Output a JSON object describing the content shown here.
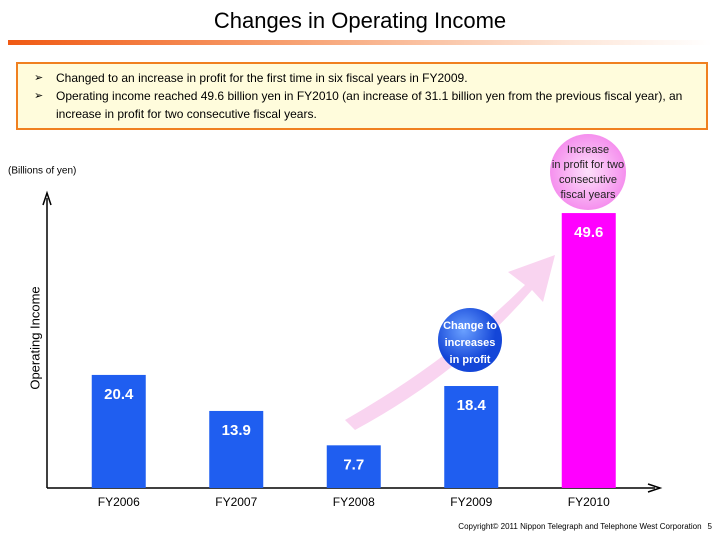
{
  "header": {
    "title": "Changes in Operating Income",
    "bullets": [
      "Changed to an increase in profit for the first time in six fiscal years in FY2009.",
      "Operating income reached 49.6 billion yen in FY2010 (an increase of 31.1 billion yen from the previous fiscal year), an increase in profit for two consecutive fiscal years."
    ]
  },
  "chart_data": {
    "type": "bar",
    "unit_label": "(Billions of yen)",
    "y_label": "Operating Income",
    "categories": [
      "FY2006",
      "FY2007",
      "FY2008",
      "FY2009",
      "FY2010"
    ],
    "values": [
      20.4,
      13.9,
      7.7,
      18.4,
      49.6
    ],
    "colors": [
      "#1f5ef0",
      "#1f5ef0",
      "#1f5ef0",
      "#1f5ef0",
      "#ff00ff"
    ],
    "ylim": [
      0,
      52.5
    ],
    "annotations": [
      {
        "lines": [
          "Change to",
          "increases",
          "in profit"
        ]
      },
      {
        "lines": [
          "Increase",
          "in profit for two",
          "consecutive",
          "fiscal years"
        ]
      }
    ]
  },
  "footer": {
    "copyright": "Copyright© 2011 Nippon Telegraph and Telephone West Corporation",
    "page": "5"
  }
}
